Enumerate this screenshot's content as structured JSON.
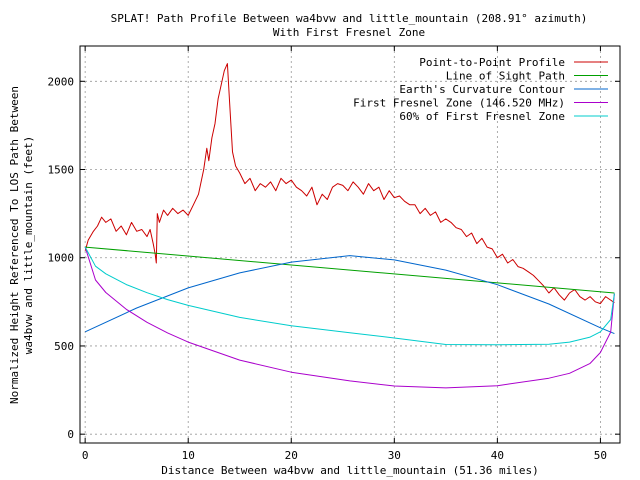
{
  "chart_data": {
    "type": "line",
    "title": "SPLAT! Path Profile Between wa4bvw and little_mountain (208.91° azimuth)",
    "subtitle": "With First Fresnel Zone",
    "xlabel": "Distance Between wa4bvw and little_mountain (51.36 miles)",
    "ylabel_line1": "Normalized Height Referenced To LOS Path Between",
    "ylabel_line2": "wa4bvw and little_mountain (feet)",
    "xlim": [
      -0.5,
      51.9
    ],
    "ylim": [
      -50,
      2200
    ],
    "xticks": [
      0,
      10,
      20,
      30,
      40,
      50
    ],
    "yticks": [
      0,
      500,
      1000,
      1500,
      2000
    ],
    "grid": true,
    "legend_position": "top-right",
    "series": [
      {
        "name": "Point-to-Point Profile",
        "color": "#cc0000",
        "x": [
          0,
          0.3,
          0.8,
          1.2,
          1.6,
          2.0,
          2.5,
          3.0,
          3.5,
          4.0,
          4.5,
          5.0,
          5.5,
          6.0,
          6.3,
          6.6,
          6.8,
          6.9,
          7.0,
          7.2,
          7.6,
          8.0,
          8.5,
          9.0,
          9.5,
          10.0,
          10.5,
          11.0,
          11.5,
          11.8,
          12.0,
          12.3,
          12.6,
          12.9,
          13.2,
          13.5,
          13.8,
          14.0,
          14.3,
          14.6,
          15.0,
          15.5,
          16.0,
          16.5,
          17.0,
          17.5,
          18.0,
          18.5,
          19.0,
          19.5,
          20.0,
          20.5,
          21.0,
          21.5,
          22.0,
          22.5,
          23.0,
          23.5,
          24.0,
          24.5,
          25.0,
          25.5,
          26.0,
          26.5,
          27.0,
          27.5,
          28.0,
          28.5,
          29.0,
          29.5,
          30.0,
          30.5,
          31.0,
          31.5,
          32.0,
          32.5,
          33.0,
          33.5,
          34.0,
          34.5,
          35.0,
          35.5,
          36.0,
          36.5,
          37.0,
          37.5,
          38.0,
          38.5,
          39.0,
          39.5,
          40.0,
          40.5,
          41.0,
          41.5,
          42.0,
          42.5,
          43.0,
          43.5,
          44.0,
          44.5,
          45.0,
          45.5,
          46.0,
          46.5,
          47.0,
          47.5,
          48.0,
          48.5,
          49.0,
          49.5,
          50.0,
          50.5,
          51.0,
          51.36
        ],
        "y": [
          1040,
          1100,
          1150,
          1180,
          1230,
          1200,
          1220,
          1150,
          1180,
          1130,
          1200,
          1150,
          1160,
          1120,
          1160,
          1080,
          1020,
          970,
          1250,
          1200,
          1270,
          1240,
          1280,
          1250,
          1270,
          1240,
          1300,
          1360,
          1500,
          1620,
          1550,
          1680,
          1760,
          1900,
          1980,
          2060,
          2100,
          1900,
          1600,
          1520,
          1480,
          1420,
          1450,
          1380,
          1420,
          1400,
          1430,
          1380,
          1450,
          1420,
          1440,
          1400,
          1380,
          1350,
          1400,
          1300,
          1360,
          1330,
          1400,
          1420,
          1410,
          1380,
          1430,
          1400,
          1360,
          1420,
          1380,
          1400,
          1330,
          1380,
          1340,
          1350,
          1320,
          1300,
          1300,
          1250,
          1280,
          1240,
          1260,
          1200,
          1220,
          1200,
          1170,
          1160,
          1120,
          1140,
          1080,
          1110,
          1060,
          1050,
          1000,
          1020,
          970,
          990,
          950,
          940,
          920,
          900,
          870,
          840,
          800,
          830,
          790,
          760,
          800,
          820,
          780,
          760,
          780,
          750,
          740,
          780,
          760,
          745
        ]
      },
      {
        "name": "Line of Sight Path",
        "color": "#00a000",
        "x": [
          0,
          51.36
        ],
        "y": [
          1060,
          800
        ]
      },
      {
        "name": "Earth's Curvature Contour",
        "color": "#0066cc",
        "x": [
          0,
          5,
          10,
          15,
          20,
          25.68,
          30,
          35,
          40,
          45,
          50,
          51.36
        ],
        "y": [
          580,
          715,
          829,
          914,
          975,
          1012,
          988,
          930,
          847,
          738,
          603,
          570
        ]
      },
      {
        "name": "First Fresnel Zone (146.520 MHz)",
        "color": "#aa00cc",
        "x": [
          0,
          1,
          2,
          4,
          6,
          8,
          10,
          15,
          20,
          25.68,
          30,
          35,
          40,
          45,
          47,
          49,
          50,
          51,
          51.36
        ],
        "y": [
          1060,
          874,
          803,
          707,
          634,
          574,
          522,
          420,
          351,
          302,
          273,
          262,
          275,
          317,
          345,
          401,
          463,
          579,
          797
        ]
      },
      {
        "name": "60% of First Fresnel Zone",
        "color": "#00cccc",
        "x": [
          0,
          1,
          2,
          4,
          6,
          8,
          10,
          15,
          20,
          25.68,
          30,
          35,
          40,
          45,
          47,
          49,
          50,
          51,
          51.36
        ],
        "y": [
          1060,
          952,
          909,
          848,
          802,
          763,
          730,
          662,
          614,
          575,
          545,
          508,
          507,
          510,
          522,
          550,
          580,
          650,
          797
        ]
      }
    ]
  }
}
